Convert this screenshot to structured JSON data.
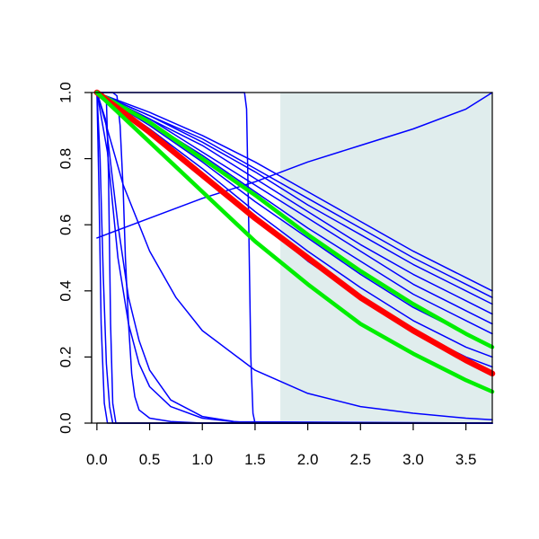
{
  "chart_data": {
    "type": "line",
    "title": "",
    "xlabel": "",
    "ylabel": "",
    "xlim": [
      -0.05,
      3.75
    ],
    "ylim": [
      0,
      1
    ],
    "grid": false,
    "x_ticks": [
      "0.0",
      "0.5",
      "1.0",
      "1.5",
      "2.0",
      "2.5",
      "3.0",
      "3.5"
    ],
    "x_tick_values": [
      0,
      0.5,
      1,
      1.5,
      2,
      2.5,
      3,
      3.5
    ],
    "y_ticks": [
      "0.0",
      "0.2",
      "0.4",
      "0.6",
      "0.8",
      "1.0"
    ],
    "y_tick_values": [
      0,
      0.2,
      0.4,
      0.6,
      0.8,
      1.0
    ],
    "shaded_region": {
      "x_from": 1.74,
      "x_to": 3.75,
      "color": "#e0eded"
    },
    "colors": {
      "blue": "#0000ff",
      "red": "#ff0000",
      "green": "#00ee00"
    },
    "series": [
      {
        "color": "blue",
        "weight": 1.5,
        "x": [
          0,
          0.5,
          1,
          1.5,
          2,
          2.5,
          3,
          3.5,
          3.75
        ],
        "y": [
          1,
          0.94,
          0.87,
          0.79,
          0.7,
          0.61,
          0.52,
          0.44,
          0.4
        ]
      },
      {
        "color": "blue",
        "weight": 1.5,
        "x": [
          0,
          0.5,
          1,
          1.5,
          2,
          2.5,
          3,
          3.5,
          3.75
        ],
        "y": [
          1,
          0.93,
          0.86,
          0.77,
          0.68,
          0.59,
          0.5,
          0.42,
          0.38
        ]
      },
      {
        "color": "blue",
        "weight": 1.5,
        "x": [
          0,
          0.5,
          1,
          1.5,
          2,
          2.5,
          3,
          3.5,
          3.75
        ],
        "y": [
          1,
          0.93,
          0.85,
          0.76,
          0.66,
          0.57,
          0.48,
          0.4,
          0.36
        ]
      },
      {
        "color": "blue",
        "weight": 1.5,
        "x": [
          0,
          0.5,
          1,
          1.5,
          2,
          2.5,
          3,
          3.5,
          3.75
        ],
        "y": [
          1,
          0.92,
          0.84,
          0.74,
          0.64,
          0.54,
          0.45,
          0.37,
          0.33
        ]
      },
      {
        "color": "blue",
        "weight": 1.5,
        "x": [
          0,
          0.5,
          1,
          1.5,
          2,
          2.5,
          3,
          3.5,
          3.75
        ],
        "y": [
          1,
          0.92,
          0.82,
          0.72,
          0.62,
          0.52,
          0.42,
          0.34,
          0.3
        ]
      },
      {
        "color": "blue",
        "weight": 1.5,
        "x": [
          0,
          0.5,
          1,
          1.5,
          2,
          2.5,
          3,
          3.5,
          3.75
        ],
        "y": [
          1,
          0.91,
          0.81,
          0.7,
          0.59,
          0.49,
          0.39,
          0.31,
          0.27
        ]
      },
      {
        "color": "blue",
        "weight": 1.5,
        "x": [
          0,
          0.5,
          1,
          1.5,
          2,
          2.5,
          3,
          3.5,
          3.75
        ],
        "y": [
          1,
          0.9,
          0.79,
          0.67,
          0.56,
          0.45,
          0.35,
          0.27,
          0.23
        ]
      },
      {
        "color": "blue",
        "weight": 1.5,
        "x": [
          0,
          0.5,
          1,
          1.5,
          2,
          2.5,
          3,
          3.5,
          3.75
        ],
        "y": [
          1,
          0.89,
          0.77,
          0.64,
          0.52,
          0.41,
          0.31,
          0.23,
          0.2
        ]
      },
      {
        "color": "blue",
        "weight": 1.5,
        "x": [
          0,
          0.5,
          1,
          1.5,
          2,
          2.5,
          3,
          3.5,
          3.75
        ],
        "y": [
          1,
          0.88,
          0.75,
          0.62,
          0.49,
          0.38,
          0.28,
          0.2,
          0.17
        ]
      },
      {
        "color": "blue",
        "weight": 1.5,
        "x": [
          0,
          0.25,
          0.5,
          0.75,
          1,
          1.5,
          2,
          2.5,
          3,
          3.5,
          3.75
        ],
        "y": [
          1,
          0.72,
          0.52,
          0.38,
          0.28,
          0.16,
          0.09,
          0.05,
          0.03,
          0.015,
          0.01
        ]
      },
      {
        "color": "blue",
        "weight": 1.5,
        "x": [
          0,
          0.5,
          1,
          1.5,
          2,
          2.5,
          3,
          3.5,
          3.75
        ],
        "y": [
          0.56,
          0.62,
          0.68,
          0.73,
          0.79,
          0.84,
          0.89,
          0.95,
          1.0
        ]
      },
      {
        "color": "blue",
        "weight": 1.5,
        "x": [
          0,
          1.0,
          1.3,
          1.4,
          1.42,
          1.44,
          1.46,
          1.48,
          1.5,
          3.75
        ],
        "y": [
          1,
          1,
          1,
          1,
          0.95,
          0.6,
          0.2,
          0.03,
          0,
          0
        ]
      },
      {
        "color": "blue",
        "weight": 1.5,
        "x": [
          0,
          0.08,
          0.2,
          0.3,
          0.4,
          0.5,
          0.7,
          1.0,
          1.3,
          1.5,
          3.75
        ],
        "y": [
          1,
          0.92,
          0.6,
          0.38,
          0.25,
          0.16,
          0.07,
          0.02,
          0.005,
          0,
          0
        ]
      },
      {
        "color": "blue",
        "weight": 1.5,
        "x": [
          0,
          0.1,
          0.2,
          0.3,
          0.4,
          0.5,
          0.7,
          1.0,
          1.3,
          3.75
        ],
        "y": [
          1,
          0.82,
          0.5,
          0.3,
          0.18,
          0.11,
          0.05,
          0.015,
          0.004,
          0
        ]
      },
      {
        "color": "blue",
        "weight": 1.5,
        "x": [
          0,
          0.03,
          0.06,
          0.09,
          0.12,
          0.15,
          3.75
        ],
        "y": [
          1,
          0.8,
          0.45,
          0.18,
          0.05,
          0,
          0
        ]
      },
      {
        "color": "blue",
        "weight": 1.5,
        "x": [
          0,
          0.02,
          0.04,
          0.07,
          0.1,
          3.75
        ],
        "y": [
          1,
          0.7,
          0.3,
          0.06,
          0,
          0
        ]
      },
      {
        "color": "blue",
        "weight": 1.5,
        "x": [
          0,
          0.15,
          0.19,
          0.22,
          0.25,
          0.27,
          0.3,
          0.33,
          0.36,
          0.4,
          0.5,
          0.7,
          1.0,
          3.75
        ],
        "y": [
          1,
          1,
          0.99,
          0.9,
          0.7,
          0.5,
          0.3,
          0.15,
          0.08,
          0.04,
          0.015,
          0.005,
          0,
          0
        ]
      },
      {
        "color": "blue",
        "weight": 1.5,
        "x": [
          0,
          0.05,
          0.09,
          0.11,
          0.13,
          0.15,
          0.18,
          3.75
        ],
        "y": [
          1,
          1,
          0.98,
          0.75,
          0.3,
          0.06,
          0,
          0
        ]
      },
      {
        "color": "green",
        "weight": 4.5,
        "x": [
          0,
          0.5,
          1,
          1.5,
          2,
          2.5,
          3,
          3.5,
          3.75
        ],
        "y": [
          1,
          0.91,
          0.8,
          0.69,
          0.57,
          0.46,
          0.36,
          0.27,
          0.23
        ]
      },
      {
        "color": "red",
        "weight": 6.5,
        "x": [
          0,
          0.5,
          1,
          1.5,
          2,
          2.5,
          3,
          3.5,
          3.75
        ],
        "y": [
          1,
          0.88,
          0.75,
          0.62,
          0.5,
          0.38,
          0.28,
          0.19,
          0.15
        ]
      },
      {
        "color": "green",
        "weight": 4.5,
        "x": [
          0,
          0.5,
          1,
          1.5,
          2,
          2.5,
          3,
          3.5,
          3.75
        ],
        "y": [
          1,
          0.85,
          0.7,
          0.55,
          0.42,
          0.3,
          0.21,
          0.13,
          0.095
        ]
      }
    ]
  }
}
